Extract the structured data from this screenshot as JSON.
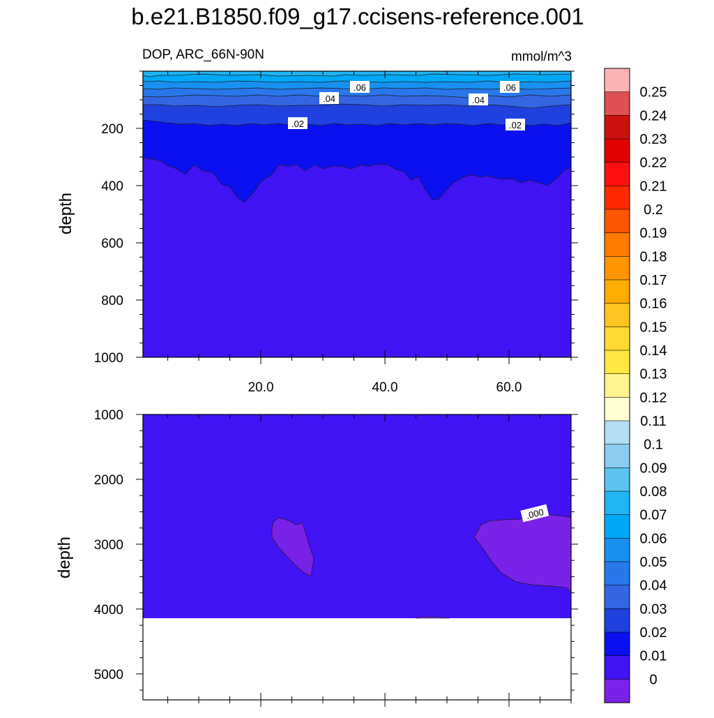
{
  "chart_data": {
    "type": "contour",
    "title": "b.e21.B1850.f09_g17.ccisens-reference.001",
    "left_subtitle": "DOP, ARC_66N-90N",
    "right_subtitle": "mmol/m^3",
    "xlim": [
      1,
      70
    ],
    "x_ticks": [
      "20.0",
      "40.0",
      "60.0"
    ],
    "panels": [
      {
        "ylabel": "depth",
        "ylim": [
          1000,
          0
        ],
        "y_ticks": [
          "200",
          "400",
          "600",
          "800",
          "1000"
        ],
        "contour_labels": [
          ".06",
          ".04",
          ".02",
          ".06",
          ".04",
          ".02"
        ]
      },
      {
        "ylabel": "depth",
        "ylim": [
          5400,
          1000
        ],
        "y_ticks": [
          "1000",
          "2000",
          "3000",
          "4000",
          "5000"
        ],
        "seafloor_depth": 4100,
        "contour_labels": [
          ".000"
        ]
      }
    ],
    "colorbar": {
      "labels": [
        "0.25",
        "0.24",
        "0.23",
        "0.22",
        "0.21",
        "0.2",
        "0.19",
        "0.18",
        "0.17",
        "0.16",
        "0.15",
        "0.14",
        "0.13",
        "0.12",
        "0.11",
        "0.1",
        "0.09",
        "0.08",
        "0.07",
        "0.06",
        "0.05",
        "0.04",
        "0.03",
        "0.02",
        "0.01",
        "0"
      ],
      "colors": [
        "#FFB4B4",
        "#E05050",
        "#CC1010",
        "#E00000",
        "#FF1010",
        "#FF2A00",
        "#FF5500",
        "#FF7A00",
        "#FF9600",
        "#FFAC00",
        "#FFC420",
        "#FFDA30",
        "#FFE840",
        "#FFF38C",
        "#FFFFD0",
        "#B4DCF4",
        "#8CCCEE",
        "#5CC4F0",
        "#20B4F4",
        "#00A8F8",
        "#1890F0",
        "#2878EC",
        "#3466E4",
        "#2040E0",
        "#0A10F0",
        "#4012F4",
        "#7A22E8"
      ]
    }
  }
}
